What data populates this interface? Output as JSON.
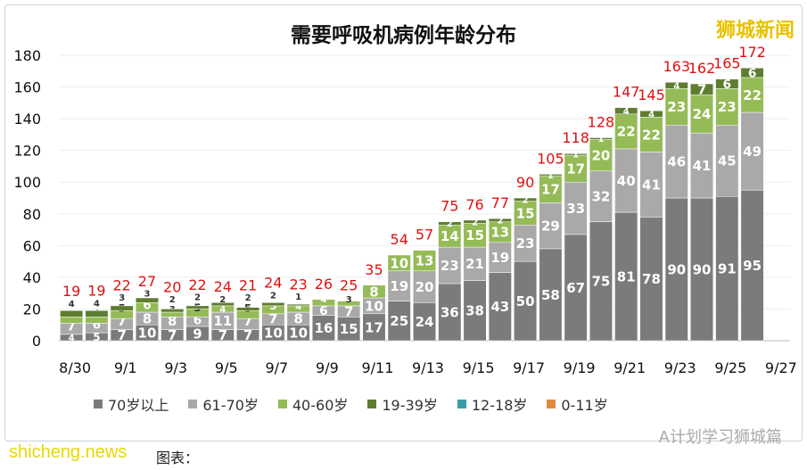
{
  "chart_data": {
    "type": "bar",
    "stacked": true,
    "title": "需要呼吸机病例年龄分布",
    "categories": [
      "8/30",
      "8/31",
      "9/1",
      "9/2",
      "9/3",
      "9/4",
      "9/5",
      "9/6",
      "9/7",
      "9/8",
      "9/9",
      "9/10",
      "9/11",
      "9/12",
      "9/13",
      "9/14",
      "9/15",
      "9/16",
      "9/17",
      "9/18",
      "9/19",
      "9/20",
      "9/21",
      "9/22",
      "9/23",
      "9/24",
      "9/25",
      "9/26",
      "9/27"
    ],
    "tick_labels": [
      "8/30",
      "9/1",
      "9/3",
      "9/5",
      "9/7",
      "9/9",
      "9/11",
      "9/13",
      "9/15",
      "9/17",
      "9/19",
      "9/21",
      "9/23",
      "9/25",
      "9/27"
    ],
    "ylim": [
      0,
      180
    ],
    "yticks": [
      0,
      20,
      40,
      60,
      80,
      100,
      120,
      140,
      160,
      180
    ],
    "grid": true,
    "legend": "bottom",
    "series": [
      {
        "name": "70岁以上",
        "color": "#7b7b7b",
        "values": [
          4,
          5,
          7,
          10,
          7,
          9,
          7,
          7,
          10,
          10,
          16,
          15,
          17,
          25,
          24,
          36,
          38,
          43,
          50,
          58,
          67,
          75,
          81,
          78,
          90,
          90,
          91,
          95,
          null
        ]
      },
      {
        "name": "61-70岁",
        "color": "#a9a9a9",
        "values": [
          7,
          6,
          7,
          8,
          8,
          6,
          11,
          7,
          7,
          8,
          6,
          7,
          10,
          19,
          20,
          23,
          21,
          19,
          23,
          29,
          33,
          32,
          40,
          41,
          46,
          41,
          45,
          49,
          null
        ]
      },
      {
        "name": "40-60岁",
        "color": "#94bb56",
        "values": [
          4,
          4,
          5,
          6,
          3,
          5,
          4,
          5,
          5,
          4,
          4,
          3,
          8,
          10,
          13,
          14,
          15,
          13,
          15,
          17,
          17,
          20,
          22,
          22,
          23,
          24,
          23,
          22,
          null
        ]
      },
      {
        "name": "19-39岁",
        "color": "#5f7d31",
        "values": [
          4,
          4,
          3,
          3,
          2,
          2,
          2,
          2,
          2,
          1,
          0,
          0,
          0,
          0,
          0,
          2,
          2,
          2,
          2,
          1,
          1,
          1,
          4,
          4,
          4,
          7,
          6,
          6,
          null
        ]
      },
      {
        "name": "12-18岁",
        "color": "#3a9aa8",
        "values": [
          0,
          0,
          0,
          0,
          0,
          0,
          0,
          0,
          0,
          0,
          0,
          0,
          0,
          0,
          0,
          0,
          0,
          0,
          0,
          0,
          0,
          0,
          0,
          0,
          0,
          0,
          0,
          0,
          null
        ]
      },
      {
        "name": "0-11岁",
        "color": "#e08a3c",
        "values": [
          0,
          0,
          0,
          0,
          0,
          0,
          0,
          0,
          0,
          0,
          0,
          0,
          0,
          0,
          0,
          0,
          0,
          0,
          0,
          0,
          0,
          0,
          0,
          0,
          0,
          0,
          0,
          0,
          null
        ]
      }
    ],
    "totals": [
      19,
      19,
      22,
      27,
      20,
      22,
      24,
      21,
      24,
      23,
      26,
      25,
      35,
      54,
      57,
      75,
      76,
      77,
      90,
      105,
      118,
      128,
      147,
      145,
      163,
      162,
      165,
      172,
      null
    ],
    "total_label_color": "#e01010"
  },
  "watermarks": {
    "logo": "狮城新闻",
    "site": "shicheng.news",
    "source": "图表：",
    "account": "A计划学习狮城篇"
  }
}
